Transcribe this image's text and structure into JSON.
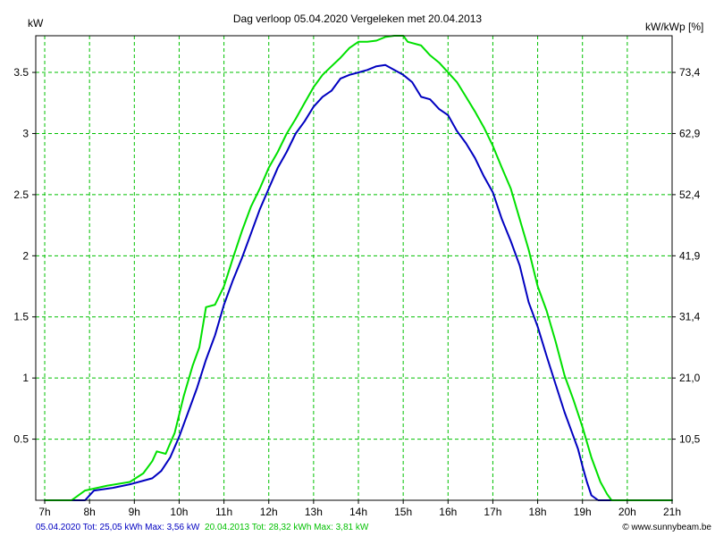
{
  "chart_data": {
    "type": "line",
    "title": "Dag  verloop 05.04.2020   Vergeleken met 20.04.2013",
    "ylabel": "kW",
    "ylabel_right": "kW/kWp [%]",
    "xlim": [
      6.8,
      21.0
    ],
    "ylim": [
      0,
      3.8
    ],
    "grid": true,
    "grid_color": "#00c000",
    "x_ticks": [
      7,
      8,
      9,
      10,
      11,
      12,
      13,
      14,
      15,
      16,
      17,
      18,
      19,
      20,
      21
    ],
    "x_tick_labels": [
      "7h",
      "8h",
      "9h",
      "10h",
      "11h",
      "12h",
      "13h",
      "14h",
      "15h",
      "16h",
      "17h",
      "18h",
      "19h",
      "20h",
      "21h"
    ],
    "y_ticks": [
      0.5,
      1,
      1.5,
      2,
      2.5,
      3,
      3.5
    ],
    "y_tick_labels": [
      "0.5",
      "1",
      "1.5",
      "2",
      "2.5",
      "3",
      "3.5"
    ],
    "y2_ticks": [
      0.5,
      1,
      1.5,
      2,
      2.5,
      3,
      3.5
    ],
    "y2_tick_labels": [
      "10,5",
      "21,0",
      "31,4",
      "41,9",
      "52,4",
      "62,9",
      "73,4"
    ],
    "series": [
      {
        "name": "05.04.2020",
        "color": "#0000c0",
        "points": [
          [
            7.0,
            0
          ],
          [
            7.9,
            0
          ],
          [
            8.1,
            0.08
          ],
          [
            8.5,
            0.1
          ],
          [
            8.9,
            0.13
          ],
          [
            9.2,
            0.16
          ],
          [
            9.4,
            0.18
          ],
          [
            9.6,
            0.24
          ],
          [
            9.8,
            0.35
          ],
          [
            10.0,
            0.52
          ],
          [
            10.2,
            0.72
          ],
          [
            10.4,
            0.92
          ],
          [
            10.6,
            1.15
          ],
          [
            10.8,
            1.35
          ],
          [
            11.0,
            1.6
          ],
          [
            11.2,
            1.8
          ],
          [
            11.4,
            1.98
          ],
          [
            11.6,
            2.18
          ],
          [
            11.8,
            2.38
          ],
          [
            12.0,
            2.55
          ],
          [
            12.2,
            2.72
          ],
          [
            12.4,
            2.85
          ],
          [
            12.6,
            3.0
          ],
          [
            12.8,
            3.1
          ],
          [
            13.0,
            3.22
          ],
          [
            13.2,
            3.3
          ],
          [
            13.4,
            3.35
          ],
          [
            13.6,
            3.45
          ],
          [
            13.8,
            3.48
          ],
          [
            14.0,
            3.5
          ],
          [
            14.2,
            3.52
          ],
          [
            14.4,
            3.55
          ],
          [
            14.6,
            3.56
          ],
          [
            14.8,
            3.52
          ],
          [
            15.0,
            3.48
          ],
          [
            15.2,
            3.42
          ],
          [
            15.4,
            3.3
          ],
          [
            15.6,
            3.28
          ],
          [
            15.8,
            3.2
          ],
          [
            16.0,
            3.15
          ],
          [
            16.2,
            3.02
          ],
          [
            16.4,
            2.92
          ],
          [
            16.6,
            2.8
          ],
          [
            16.8,
            2.65
          ],
          [
            17.0,
            2.52
          ],
          [
            17.2,
            2.3
          ],
          [
            17.4,
            2.12
          ],
          [
            17.6,
            1.92
          ],
          [
            17.8,
            1.62
          ],
          [
            18.0,
            1.42
          ],
          [
            18.2,
            1.18
          ],
          [
            18.4,
            0.95
          ],
          [
            18.6,
            0.72
          ],
          [
            18.8,
            0.52
          ],
          [
            18.9,
            0.42
          ],
          [
            19.0,
            0.28
          ],
          [
            19.1,
            0.15
          ],
          [
            19.2,
            0.04
          ],
          [
            19.35,
            0
          ],
          [
            21.0,
            0
          ]
        ]
      },
      {
        "name": "20.04.2013",
        "color": "#00e000",
        "points": [
          [
            7.0,
            0
          ],
          [
            7.6,
            0
          ],
          [
            7.9,
            0.08
          ],
          [
            8.4,
            0.12
          ],
          [
            8.9,
            0.15
          ],
          [
            9.2,
            0.22
          ],
          [
            9.4,
            0.32
          ],
          [
            9.5,
            0.4
          ],
          [
            9.7,
            0.38
          ],
          [
            9.9,
            0.55
          ],
          [
            10.1,
            0.85
          ],
          [
            10.3,
            1.1
          ],
          [
            10.45,
            1.25
          ],
          [
            10.6,
            1.58
          ],
          [
            10.8,
            1.6
          ],
          [
            11.0,
            1.75
          ],
          [
            11.2,
            1.98
          ],
          [
            11.4,
            2.2
          ],
          [
            11.6,
            2.4
          ],
          [
            11.8,
            2.55
          ],
          [
            12.0,
            2.72
          ],
          [
            12.2,
            2.85
          ],
          [
            12.4,
            3.0
          ],
          [
            12.6,
            3.12
          ],
          [
            12.8,
            3.25
          ],
          [
            13.0,
            3.38
          ],
          [
            13.2,
            3.48
          ],
          [
            13.4,
            3.55
          ],
          [
            13.6,
            3.62
          ],
          [
            13.8,
            3.7
          ],
          [
            14.0,
            3.75
          ],
          [
            14.2,
            3.75
          ],
          [
            14.4,
            3.76
          ],
          [
            14.6,
            3.79
          ],
          [
            14.8,
            3.8
          ],
          [
            15.0,
            3.8
          ],
          [
            15.1,
            3.75
          ],
          [
            15.4,
            3.72
          ],
          [
            15.6,
            3.64
          ],
          [
            15.8,
            3.58
          ],
          [
            16.0,
            3.5
          ],
          [
            16.2,
            3.42
          ],
          [
            16.4,
            3.3
          ],
          [
            16.6,
            3.18
          ],
          [
            16.8,
            3.05
          ],
          [
            17.0,
            2.9
          ],
          [
            17.2,
            2.72
          ],
          [
            17.4,
            2.55
          ],
          [
            17.6,
            2.3
          ],
          [
            17.8,
            2.05
          ],
          [
            18.0,
            1.75
          ],
          [
            18.2,
            1.55
          ],
          [
            18.4,
            1.3
          ],
          [
            18.6,
            1.02
          ],
          [
            18.8,
            0.82
          ],
          [
            19.0,
            0.6
          ],
          [
            19.2,
            0.35
          ],
          [
            19.4,
            0.15
          ],
          [
            19.55,
            0.05
          ],
          [
            19.65,
            0
          ],
          [
            21.0,
            0
          ]
        ]
      }
    ]
  },
  "footer": {
    "series1_text": "05.04.2020 Tot: 25,05 kWh Max: 3,56 kW",
    "series2_text": "20.04.2013 Tot: 28,32 kWh Max: 3,81 kW",
    "credit": "© www.sunnybeam.be"
  }
}
